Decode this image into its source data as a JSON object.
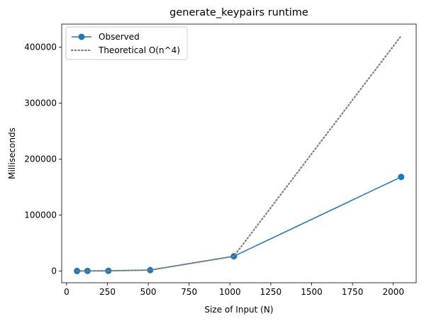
{
  "chart_data": {
    "type": "line",
    "title": "generate_keypairs runtime",
    "xlabel": "Size of Input (N)",
    "ylabel": "Milliseconds",
    "xlim": [
      -30,
      2140
    ],
    "ylim": [
      -21000,
      441000
    ],
    "xticks": [
      0,
      250,
      500,
      750,
      1000,
      1250,
      1500,
      1750,
      2000
    ],
    "xtick_labels": [
      "0",
      "250",
      "500",
      "750",
      "1000",
      "1250",
      "1500",
      "1750",
      "2000"
    ],
    "yticks": [
      0,
      100000,
      200000,
      300000,
      400000
    ],
    "ytick_labels": [
      "0",
      "100000",
      "200000",
      "300000",
      "400000"
    ],
    "grid": false,
    "legend_position": "top-left",
    "series": [
      {
        "name": "Observed",
        "color": "#1f77b4",
        "style": "solid-with-circle-markers",
        "x": [
          64,
          128,
          256,
          512,
          1024,
          2048
        ],
        "y": [
          0,
          100,
          300,
          1600,
          26300,
          168000
        ]
      },
      {
        "name": "Theoretical O(n^4)",
        "color": "#808080",
        "style": "dotted",
        "x": [
          64,
          128,
          256,
          512,
          1024,
          2048
        ],
        "y": [
          0,
          100,
          300,
          1700,
          26300,
          420000
        ]
      }
    ]
  }
}
